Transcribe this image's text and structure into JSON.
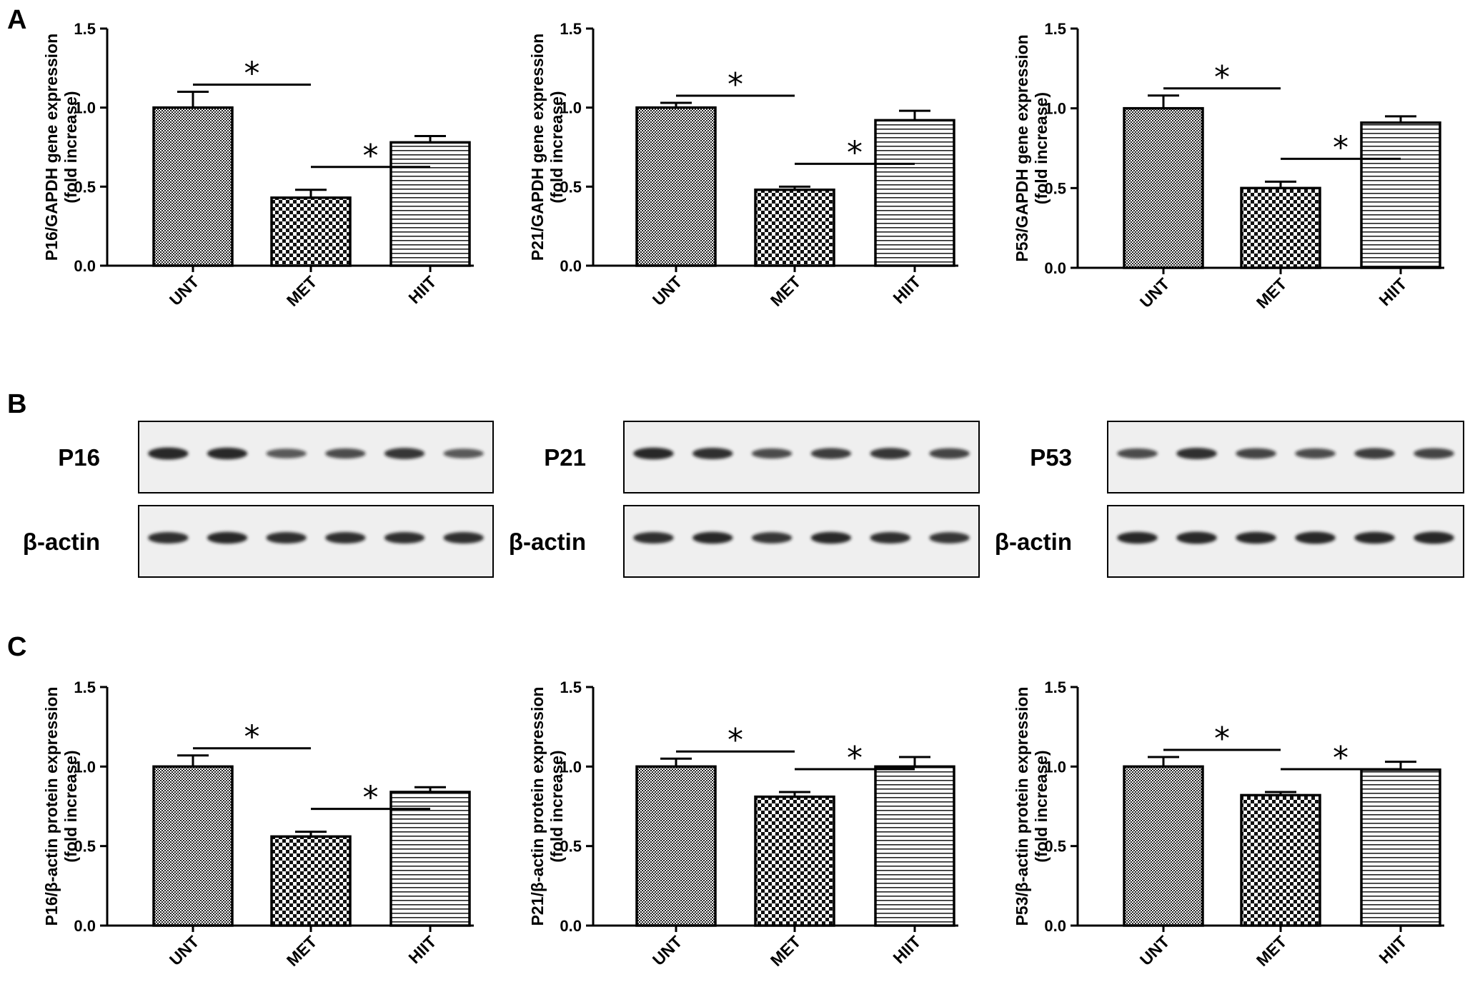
{
  "panels": {
    "a": "A",
    "b": "B",
    "c": "C"
  },
  "significance_mark": "*",
  "colors": {
    "axis": "#000000",
    "band": "#1a1a1a",
    "blot_background": "#efefef"
  },
  "chart_data": [
    {
      "type": "bar",
      "panel": "A",
      "categories": [
        "UNT",
        "MET",
        "HIIT"
      ],
      "values": [
        1.0,
        0.43,
        0.78
      ],
      "errors": [
        0.1,
        0.05,
        0.04
      ],
      "ylabel": [
        "P16/GAPDH gene expression",
        "(fold increase)"
      ],
      "ylim": [
        0,
        1.5
      ],
      "yticks": [
        "0.0",
        "0.5",
        "1.0",
        "1.5"
      ],
      "significance": [
        [
          "UNT",
          "MET"
        ],
        [
          "MET",
          "HIIT"
        ]
      ]
    },
    {
      "type": "bar",
      "panel": "A",
      "categories": [
        "UNT",
        "MET",
        "HIIT"
      ],
      "values": [
        1.0,
        0.48,
        0.92
      ],
      "errors": [
        0.03,
        0.02,
        0.06
      ],
      "ylabel": [
        "P21/GAPDH gene expression",
        "(fold increase)"
      ],
      "ylim": [
        0,
        1.5
      ],
      "yticks": [
        "0.0",
        "0.5",
        "1.0",
        "1.5"
      ],
      "significance": [
        [
          "UNT",
          "MET"
        ],
        [
          "MET",
          "HIIT"
        ]
      ]
    },
    {
      "type": "bar",
      "panel": "A",
      "categories": [
        "UNT",
        "MET",
        "HIIT"
      ],
      "values": [
        1.0,
        0.5,
        0.91
      ],
      "errors": [
        0.08,
        0.04,
        0.04
      ],
      "ylabel": [
        "P53/GAPDH gene expression",
        "(fold increase)"
      ],
      "ylim": [
        0,
        1.5
      ],
      "yticks": [
        "0.0",
        "0.5",
        "1.0",
        "1.5"
      ],
      "significance": [
        [
          "UNT",
          "MET"
        ],
        [
          "MET",
          "HIIT"
        ]
      ]
    },
    {
      "type": "bar",
      "panel": "C",
      "categories": [
        "UNT",
        "MET",
        "HIIT"
      ],
      "values": [
        1.0,
        0.56,
        0.84
      ],
      "errors": [
        0.07,
        0.03,
        0.03
      ],
      "ylabel": [
        "P16/β-actin protein expression",
        "(fold increase)"
      ],
      "ylim": [
        0,
        1.5
      ],
      "yticks": [
        "0.0",
        "0.5",
        "1.0",
        "1.5"
      ],
      "significance": [
        [
          "UNT",
          "MET"
        ],
        [
          "MET",
          "HIIT"
        ]
      ]
    },
    {
      "type": "bar",
      "panel": "C",
      "categories": [
        "UNT",
        "MET",
        "HIIT"
      ],
      "values": [
        1.0,
        0.81,
        1.0
      ],
      "errors": [
        0.05,
        0.03,
        0.06
      ],
      "ylabel": [
        "P21/β-actin protein expression",
        "(fold increase)"
      ],
      "ylim": [
        0,
        1.5
      ],
      "yticks": [
        "0.0",
        "0.5",
        "1.0",
        "1.5"
      ],
      "significance": [
        [
          "UNT",
          "MET"
        ],
        [
          "MET",
          "HIIT"
        ]
      ]
    },
    {
      "type": "bar",
      "panel": "C",
      "categories": [
        "UNT",
        "MET",
        "HIIT"
      ],
      "values": [
        1.0,
        0.82,
        0.98
      ],
      "errors": [
        0.06,
        0.02,
        0.05
      ],
      "ylabel": [
        "P53/β-actin protein expression",
        "(fold increase)"
      ],
      "ylim": [
        0,
        1.5
      ],
      "yticks": [
        "0.0",
        "0.5",
        "1.0",
        "1.5"
      ],
      "significance": [
        [
          "UNT",
          "MET"
        ],
        [
          "MET",
          "HIIT"
        ]
      ]
    }
  ],
  "western_blots": [
    {
      "target": "P16",
      "loading_control": "β-actin",
      "target_band_intensity": [
        1.0,
        0.95,
        0.6,
        0.7,
        0.85,
        0.6
      ],
      "control_band_intensity": [
        0.9,
        0.95,
        0.9,
        0.9,
        0.9,
        0.9
      ]
    },
    {
      "target": "P21",
      "loading_control": "β-actin",
      "target_band_intensity": [
        0.95,
        0.9,
        0.7,
        0.8,
        0.85,
        0.75
      ],
      "control_band_intensity": [
        0.9,
        0.95,
        0.85,
        0.95,
        0.9,
        0.85
      ]
    },
    {
      "target": "P53",
      "loading_control": "β-actin",
      "target_band_intensity": [
        0.7,
        0.9,
        0.75,
        0.7,
        0.8,
        0.75
      ],
      "control_band_intensity": [
        0.95,
        1.0,
        0.95,
        1.0,
        0.95,
        1.0
      ]
    }
  ]
}
